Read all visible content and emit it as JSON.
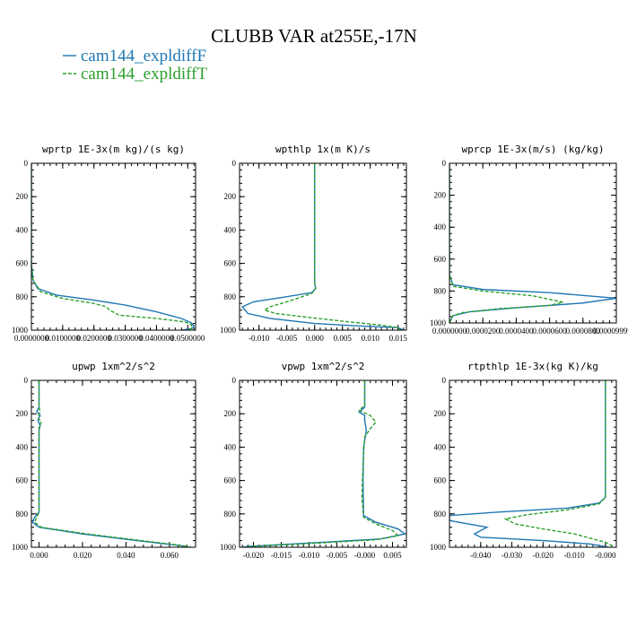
{
  "title": "CLUBB VAR at255E,-17N",
  "legend": [
    {
      "label": "cam144_expldiffF",
      "color": "#1f77b4",
      "dash": "solid"
    },
    {
      "label": "cam144_expldiffT",
      "color": "#2ca02c",
      "dash": "dashed"
    }
  ],
  "chart_data": [
    {
      "type": "line",
      "title": "wprtp  1E-3x(m kg)/(s kg)",
      "xlim": [
        0,
        0.0525
      ],
      "ylim": [
        1000,
        0
      ],
      "xticks": [
        0,
        0.01,
        0.02,
        0.03,
        0.04,
        0.05
      ],
      "xtick_labels": [
        "0.0000000",
        "0.0100000",
        "0.0200000",
        "0.0300000",
        "0.0400000",
        "0.0500000"
      ],
      "yticks": [
        0,
        200,
        400,
        600,
        800,
        1000
      ],
      "ytick_labels": [
        "0",
        "200",
        "400",
        "600",
        "800",
        "1000"
      ],
      "series": [
        {
          "name": "cam144_expldiffF",
          "points": [
            [
              0,
              0
            ],
            [
              0,
              600
            ],
            [
              0.0005,
              700
            ],
            [
              0.002,
              750
            ],
            [
              0.008,
              790
            ],
            [
              0.02,
              820
            ],
            [
              0.03,
              850
            ],
            [
              0.04,
              890
            ],
            [
              0.048,
              930
            ],
            [
              0.051,
              955
            ],
            [
              0.052,
              975
            ],
            [
              0.0515,
              990
            ],
            [
              0.048,
              1000
            ]
          ]
        },
        {
          "name": "cam144_expldiffT",
          "points": [
            [
              0,
              0
            ],
            [
              0,
              600
            ],
            [
              0.0005,
              700
            ],
            [
              0.003,
              770
            ],
            [
              0.01,
              810
            ],
            [
              0.02,
              840
            ],
            [
              0.024,
              860
            ],
            [
              0.025,
              880
            ],
            [
              0.028,
              910
            ],
            [
              0.04,
              930
            ],
            [
              0.049,
              950
            ],
            [
              0.051,
              965
            ],
            [
              0.0515,
              985
            ],
            [
              0.05,
              1000
            ]
          ]
        }
      ]
    },
    {
      "type": "line",
      "title": "wpthlp  1x(m K)/s",
      "xlim": [
        -0.0135,
        0.0165
      ],
      "ylim": [
        1000,
        0
      ],
      "xticks": [
        -0.01,
        -0.005,
        0,
        0.005,
        0.01,
        0.015
      ],
      "xtick_labels": [
        "-0.010",
        "-0.005",
        "0.000",
        "0.005",
        "0.010",
        "0.015"
      ],
      "yticks": [
        0,
        200,
        400,
        600,
        800,
        1000
      ],
      "ytick_labels": [
        "0",
        "200",
        "400",
        "600",
        "800",
        "1000"
      ],
      "series": [
        {
          "name": "cam144_expldiffF",
          "points": [
            [
              0,
              0
            ],
            [
              0,
              720
            ],
            [
              0.0002,
              750
            ],
            [
              -0.0005,
              775
            ],
            [
              -0.006,
              805
            ],
            [
              -0.011,
              830
            ],
            [
              -0.013,
              860
            ],
            [
              -0.012,
              900
            ],
            [
              -0.008,
              930
            ],
            [
              0,
              960
            ],
            [
              0.008,
              975
            ],
            [
              0.015,
              985
            ],
            [
              0.016,
              1000
            ]
          ]
        },
        {
          "name": "cam144_expldiffT",
          "points": [
            [
              0,
              0
            ],
            [
              0,
              720
            ],
            [
              0.0002,
              750
            ],
            [
              -0.0005,
              780
            ],
            [
              -0.004,
              820
            ],
            [
              -0.008,
              860
            ],
            [
              -0.009,
              880
            ],
            [
              -0.007,
              900
            ],
            [
              -0.002,
              920
            ],
            [
              0.006,
              950
            ],
            [
              0.012,
              970
            ],
            [
              0.015,
              985
            ],
            [
              0.0155,
              1000
            ]
          ]
        }
      ]
    },
    {
      "type": "line",
      "title": "wprcp  1E-3x(m/s) (kg/kg)",
      "xlim": [
        0,
        0.0001
      ],
      "ylim": [
        1000,
        0
      ],
      "xticks": [
        0,
        2e-05,
        4e-05,
        6e-05,
        8e-05,
        0.0001
      ],
      "xtick_labels": [
        "0.0000000",
        "0.0000200",
        "0.0000400",
        "0.0000600",
        "0.0000800",
        "0.0000999999"
      ],
      "yticks": [
        0,
        200,
        400,
        600,
        800,
        1000
      ],
      "ytick_labels": [
        "0",
        "200",
        "400",
        "600",
        "800",
        "1000"
      ],
      "series": [
        {
          "name": "cam144_expldiffF",
          "points": [
            [
              0,
              0
            ],
            [
              0,
              700
            ],
            [
              2e-06,
              760
            ],
            [
              2e-05,
              790
            ],
            [
              6e-05,
              810
            ],
            [
              0.0001,
              845
            ],
            [
              8e-05,
              875
            ],
            [
              4e-05,
              905
            ],
            [
              1.2e-05,
              930
            ],
            [
              2e-06,
              955
            ],
            [
              0,
              1000
            ]
          ]
        },
        {
          "name": "cam144_expldiffT",
          "points": [
            [
              0,
              0
            ],
            [
              0,
              700
            ],
            [
              2e-06,
              770
            ],
            [
              2e-05,
              800
            ],
            [
              5e-05,
              830
            ],
            [
              6.8e-05,
              870
            ],
            [
              6e-05,
              890
            ],
            [
              3e-05,
              910
            ],
            [
              8e-06,
              935
            ],
            [
              2e-06,
              955
            ],
            [
              0,
              1000
            ]
          ]
        }
      ]
    },
    {
      "type": "line",
      "title": "upwp  1xm^2/s^2",
      "xlim": [
        -0.0035,
        0.072
      ],
      "ylim": [
        1000,
        0
      ],
      "xticks": [
        0,
        0.02,
        0.04,
        0.06
      ],
      "xtick_labels": [
        "0.000",
        "0.020",
        "0.040",
        "0.060"
      ],
      "yticks": [
        0,
        200,
        400,
        600,
        800,
        1000
      ],
      "ytick_labels": [
        "0",
        "200",
        "400",
        "600",
        "800",
        "1000"
      ],
      "series": [
        {
          "name": "cam144_expldiffF",
          "points": [
            [
              0,
              0
            ],
            [
              0,
              160
            ],
            [
              -0.001,
              185
            ],
            [
              0.0005,
              210
            ],
            [
              -0.0005,
              240
            ],
            [
              0.0005,
              270
            ],
            [
              0,
              300
            ],
            [
              0,
              790
            ],
            [
              -0.002,
              820
            ],
            [
              -0.003,
              850
            ],
            [
              0,
              880
            ],
            [
              0.02,
              920
            ],
            [
              0.045,
              960
            ],
            [
              0.065,
              990
            ],
            [
              0.068,
              1000
            ]
          ]
        },
        {
          "name": "cam144_expldiffT",
          "points": [
            [
              0,
              0
            ],
            [
              0,
              160
            ],
            [
              0.0005,
              190
            ],
            [
              -0.0005,
              220
            ],
            [
              0.001,
              250
            ],
            [
              0,
              280
            ],
            [
              0,
              790
            ],
            [
              -0.001,
              820
            ],
            [
              -0.002,
              850
            ],
            [
              0.001,
              880
            ],
            [
              0.022,
              920
            ],
            [
              0.047,
              960
            ],
            [
              0.066,
              990
            ],
            [
              0.07,
              1000
            ]
          ]
        }
      ]
    },
    {
      "type": "line",
      "title": "vpwp  1xm^2/s^2",
      "xlim": [
        -0.0225,
        0.0075
      ],
      "ylim": [
        1000,
        0
      ],
      "xticks": [
        -0.02,
        -0.015,
        -0.01,
        -0.005,
        0,
        0.005
      ],
      "xtick_labels": [
        "-0.020",
        "-0.015",
        "-0.010",
        "-0.005",
        "-0.000",
        "0.005"
      ],
      "yticks": [
        0,
        200,
        400,
        600,
        800,
        1000
      ],
      "ytick_labels": [
        "0",
        "200",
        "400",
        "600",
        "800",
        "1000"
      ],
      "series": [
        {
          "name": "cam144_expldiffF",
          "points": [
            [
              0,
              0
            ],
            [
              0,
              160
            ],
            [
              -0.001,
              190
            ],
            [
              0,
              210
            ],
            [
              0,
              240
            ],
            [
              0.0003,
              300
            ],
            [
              -0.0002,
              400
            ],
            [
              -0.0003,
              600
            ],
            [
              -0.0002,
              810
            ],
            [
              0.002,
              850
            ],
            [
              0.006,
              890
            ],
            [
              0.0072,
              920
            ],
            [
              0.003,
              950
            ],
            [
              -0.01,
              975
            ],
            [
              -0.021,
              995
            ],
            [
              -0.022,
              1000
            ]
          ]
        },
        {
          "name": "cam144_expldiffT",
          "points": [
            [
              0,
              0
            ],
            [
              0,
              150
            ],
            [
              -0.001,
              180
            ],
            [
              0.001,
              210
            ],
            [
              0.002,
              250
            ],
            [
              0.001,
              290
            ],
            [
              0,
              340
            ],
            [
              -0.0003,
              500
            ],
            [
              -0.0005,
              700
            ],
            [
              -0.0002,
              820
            ],
            [
              0.002,
              860
            ],
            [
              0.005,
              900
            ],
            [
              0.006,
              930
            ],
            [
              0.002,
              955
            ],
            [
              -0.01,
              978
            ],
            [
              -0.02,
              995
            ],
            [
              -0.0215,
              1000
            ]
          ]
        }
      ]
    },
    {
      "type": "line",
      "title": "rtpthlp  1E-3x(kg K)/kg",
      "xlim": [
        -0.05,
        0.0035
      ],
      "ylim": [
        1000,
        0
      ],
      "xticks": [
        -0.04,
        -0.03,
        -0.02,
        -0.01,
        0
      ],
      "xtick_labels": [
        "-0.040",
        "-0.030",
        "-0.020",
        "-0.010",
        "-0.000"
      ],
      "yticks": [
        0,
        200,
        400,
        600,
        800,
        1000
      ],
      "ytick_labels": [
        "0",
        "200",
        "400",
        "600",
        "800",
        "1000"
      ],
      "series": [
        {
          "name": "cam144_expldiffF",
          "points": [
            [
              0,
              0
            ],
            [
              0,
              700
            ],
            [
              -0.002,
              735
            ],
            [
              -0.012,
              765
            ],
            [
              -0.035,
              790
            ],
            [
              -0.05,
              810
            ],
            [
              -0.05,
              840
            ],
            [
              -0.038,
              880
            ],
            [
              -0.042,
              920
            ],
            [
              -0.04,
              940
            ],
            [
              -0.02,
              960
            ],
            [
              -0.005,
              980
            ],
            [
              0.001,
              1000
            ]
          ]
        },
        {
          "name": "cam144_expldiffT",
          "points": [
            [
              0,
              0
            ],
            [
              0,
              700
            ],
            [
              -0.002,
              740
            ],
            [
              -0.012,
              775
            ],
            [
              -0.025,
              805
            ],
            [
              -0.032,
              830
            ],
            [
              -0.029,
              860
            ],
            [
              -0.02,
              890
            ],
            [
              -0.01,
              920
            ],
            [
              -0.004,
              950
            ],
            [
              0,
              970
            ],
            [
              0.002,
              990
            ],
            [
              0.002,
              1000
            ]
          ]
        }
      ]
    }
  ]
}
